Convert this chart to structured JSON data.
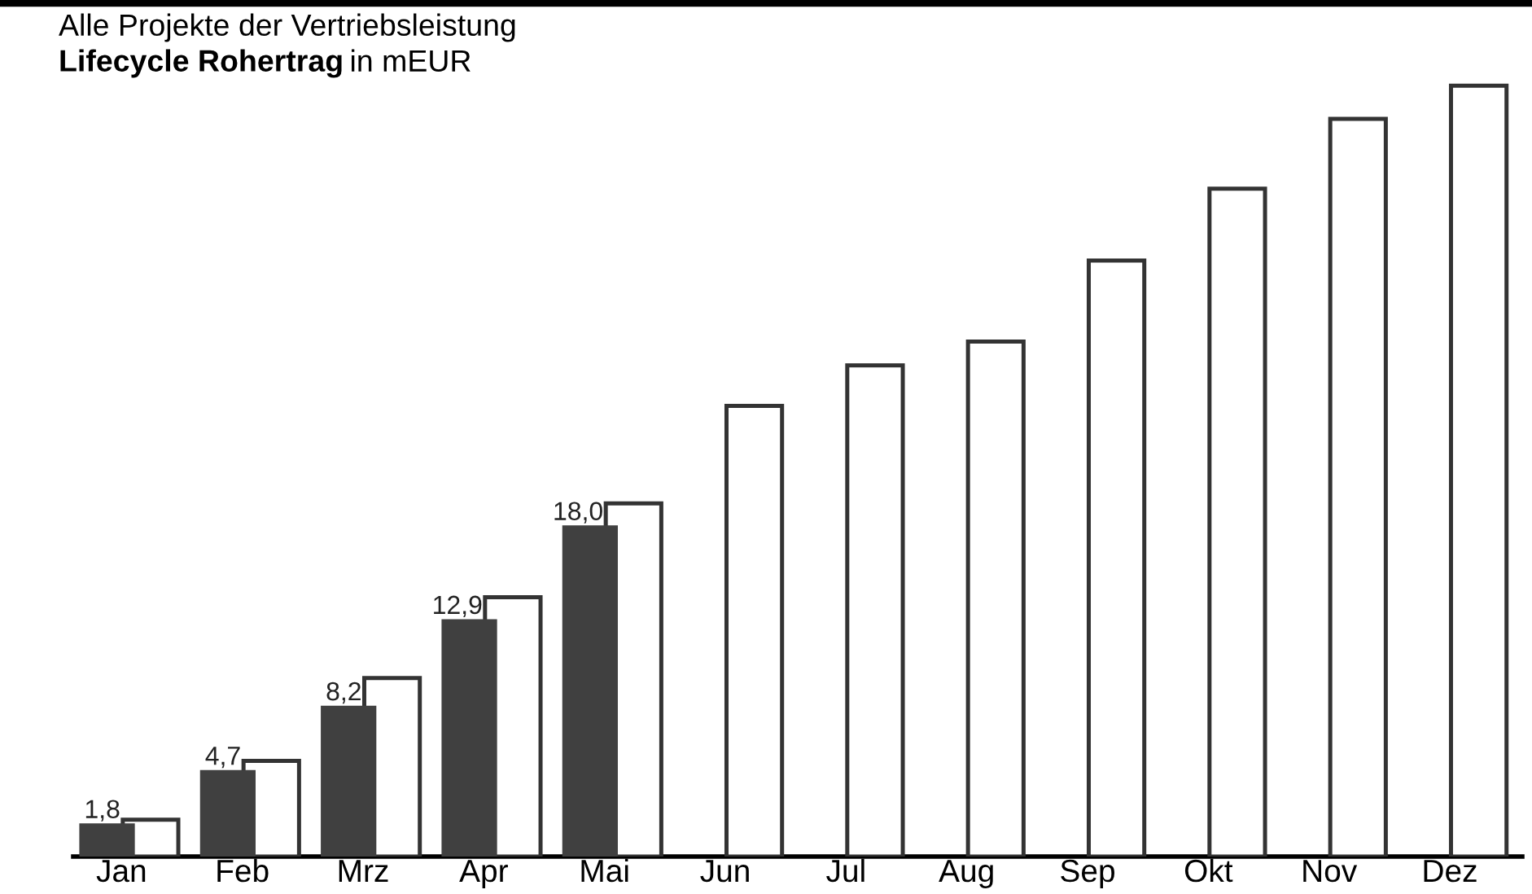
{
  "chart_data": {
    "type": "bar",
    "title": "Alle Projekte der Vertriebsleistung",
    "subtitle": "Lifecycle Rohertrag in mEUR",
    "categories": [
      "Jan",
      "Feb",
      "Mrz",
      "Apr",
      "Mai",
      "Jun",
      "Jul",
      "Aug",
      "Sep",
      "Okt",
      "Nov",
      "Dez"
    ],
    "series": [
      {
        "color": "#404040",
        "values": [
          1.8,
          4.7,
          8.2,
          12.9,
          18.0,
          null,
          null,
          null,
          null,
          null,
          null,
          null
        ],
        "value_labels": [
          "1,8",
          "4,7",
          "8,2",
          "12,9",
          "18,0",
          null,
          null,
          null,
          null,
          null,
          null,
          null
        ]
      },
      {
        "color": "#ffffff",
        "values": [
          2.0,
          5.2,
          9.7,
          14.1,
          19.2,
          24.5,
          26.7,
          28.0,
          32.4,
          36.3,
          40.1,
          41.9
        ]
      }
    ],
    "tick_labels": "x",
    "grid": false,
    "legend": false
  }
}
